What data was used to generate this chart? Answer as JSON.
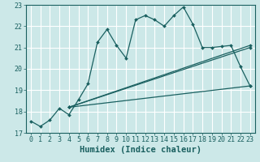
{
  "xlabel": "Humidex (Indice chaleur)",
  "ylabel": "",
  "xlim": [
    -0.5,
    23.5
  ],
  "ylim": [
    17,
    23
  ],
  "yticks": [
    17,
    18,
    19,
    20,
    21,
    22,
    23
  ],
  "xticks": [
    0,
    1,
    2,
    3,
    4,
    5,
    6,
    7,
    8,
    9,
    10,
    11,
    12,
    13,
    14,
    15,
    16,
    17,
    18,
    19,
    20,
    21,
    22,
    23
  ],
  "bg_color": "#cce8e8",
  "line_color": "#1a6060",
  "grid_color": "#b8d8d8",
  "main_line": {
    "x": [
      0,
      1,
      2,
      3,
      4,
      5,
      6,
      7,
      8,
      9,
      10,
      11,
      12,
      13,
      14,
      15,
      16,
      17,
      18,
      19,
      20,
      21,
      22,
      23
    ],
    "y": [
      17.55,
      17.3,
      17.6,
      18.15,
      17.85,
      18.55,
      19.3,
      21.25,
      21.85,
      21.1,
      20.5,
      22.3,
      22.5,
      22.3,
      22.0,
      22.5,
      22.9,
      22.1,
      21.0,
      21.0,
      21.05,
      21.1,
      20.1,
      19.2
    ]
  },
  "ref_lines": [
    {
      "x": [
        4,
        23
      ],
      "y": [
        18.2,
        19.2
      ]
    },
    {
      "x": [
        4,
        23
      ],
      "y": [
        18.2,
        21.0
      ]
    },
    {
      "x": [
        4,
        23
      ],
      "y": [
        18.2,
        21.1
      ]
    }
  ],
  "marker": "D",
  "marker_size": 2.0,
  "line_width": 0.9,
  "font_color": "#1a6060",
  "tick_label_size": 6.0,
  "xlabel_size": 7.5
}
